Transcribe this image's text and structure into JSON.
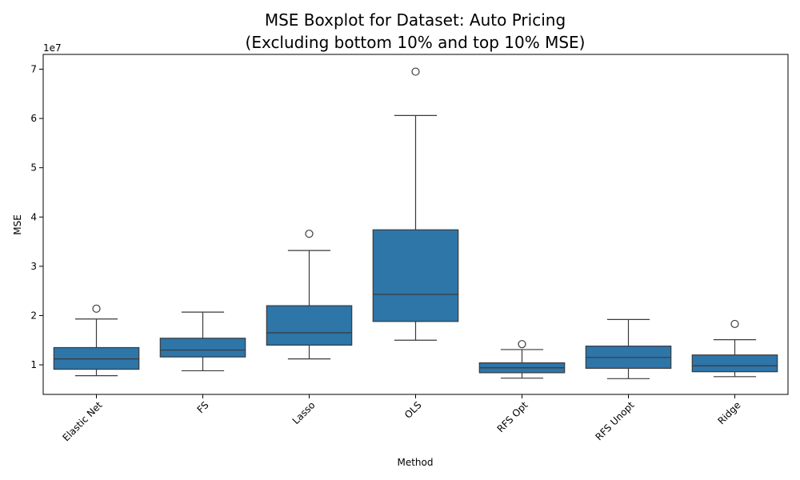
{
  "chart_data": {
    "type": "boxplot",
    "title_lines": [
      "MSE Boxplot for Dataset: Auto Pricing",
      "(Excluding bottom 10% and top 10% MSE)"
    ],
    "xlabel": "Method",
    "ylabel": "MSE",
    "y_scale_label": "1e7",
    "ylim": [
      0.4,
      7.3
    ],
    "yticks": [
      1,
      2,
      3,
      4,
      5,
      6,
      7
    ],
    "categories": [
      "Elastic Net",
      "FS",
      "Lasso",
      "OLS",
      "RFS Opt",
      "RFS Unopt",
      "Ridge"
    ],
    "box_color": "#2e75a8",
    "boxes": [
      {
        "name": "Elastic Net",
        "whisker_low": 0.78,
        "q1": 0.91,
        "median": 1.12,
        "q3": 1.35,
        "whisker_high": 1.93,
        "outliers": [
          2.14
        ]
      },
      {
        "name": "FS",
        "whisker_low": 0.88,
        "q1": 1.16,
        "median": 1.3,
        "q3": 1.54,
        "whisker_high": 2.07,
        "outliers": []
      },
      {
        "name": "Lasso",
        "whisker_low": 1.12,
        "q1": 1.4,
        "median": 1.65,
        "q3": 2.2,
        "whisker_high": 3.32,
        "outliers": [
          3.66
        ]
      },
      {
        "name": "OLS",
        "whisker_low": 1.5,
        "q1": 1.88,
        "median": 2.43,
        "q3": 3.74,
        "whisker_high": 6.06,
        "outliers": [
          6.95
        ]
      },
      {
        "name": "RFS Opt",
        "whisker_low": 0.73,
        "q1": 0.84,
        "median": 0.94,
        "q3": 1.04,
        "whisker_high": 1.31,
        "outliers": [
          1.42
        ]
      },
      {
        "name": "RFS Unopt",
        "whisker_low": 0.72,
        "q1": 0.93,
        "median": 1.15,
        "q3": 1.38,
        "whisker_high": 1.92,
        "outliers": []
      },
      {
        "name": "Ridge",
        "whisker_low": 0.76,
        "q1": 0.86,
        "median": 0.98,
        "q3": 1.2,
        "whisker_high": 1.51,
        "outliers": [
          1.83
        ]
      }
    ]
  }
}
